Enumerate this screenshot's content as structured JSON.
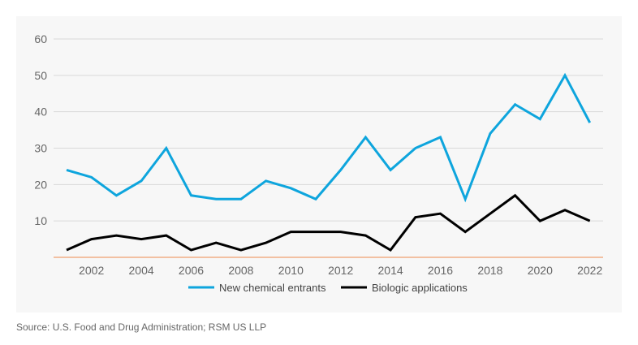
{
  "chart_data": {
    "type": "line",
    "x": [
      2001,
      2002,
      2003,
      2004,
      2005,
      2006,
      2007,
      2008,
      2009,
      2010,
      2011,
      2012,
      2013,
      2014,
      2015,
      2016,
      2017,
      2018,
      2019,
      2020,
      2021,
      2022
    ],
    "series": [
      {
        "name": "New chemical entrants",
        "color": "#0ea5dd",
        "values": [
          24,
          22,
          17,
          21,
          30,
          17,
          16,
          16,
          21,
          19,
          16,
          24,
          33,
          24,
          30,
          33,
          16,
          34,
          42,
          38,
          50,
          37
        ]
      },
      {
        "name": "Biologic applications",
        "color": "#000000",
        "values": [
          2,
          5,
          6,
          5,
          6,
          2,
          4,
          2,
          4,
          7,
          7,
          7,
          6,
          2,
          11,
          12,
          7,
          12,
          17,
          10,
          13,
          10
        ]
      }
    ],
    "yticks": [
      "10",
      "20",
      "30",
      "40",
      "50",
      "60"
    ],
    "xticks": [
      "2002",
      "2004",
      "2006",
      "2008",
      "2010",
      "2012",
      "2014",
      "2016",
      "2018",
      "2020",
      "2022"
    ],
    "ylim": [
      0,
      60
    ],
    "grid": true,
    "legend": "bottom-center",
    "axis_color": "#f0a070"
  },
  "source": "Source: U.S. Food and Drug Administration; RSM US LLP"
}
